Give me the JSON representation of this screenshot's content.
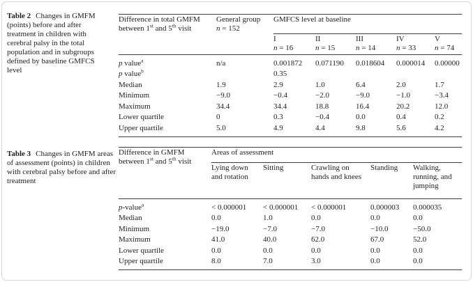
{
  "table2": {
    "caption_label": "Table 2",
    "caption_text": "Changes in GMFM (points) before and after treatment in children with cerebral palsy in the total population and in subgroups defined by baseline GMFCS level",
    "header": {
      "stub_line1": "Difference in total GMFM",
      "stub_line2": [
        [
          "t",
          "between 1"
        ],
        [
          "s",
          "st"
        ],
        [
          "t",
          " and 5"
        ],
        [
          "s",
          "th"
        ],
        [
          "t",
          " visit"
        ]
      ],
      "general_line1": "General group",
      "general_line2": [
        [
          "i",
          "n"
        ],
        [
          "t",
          " = 152"
        ]
      ],
      "spanner": "GMFCS level at baseline",
      "levels": [
        {
          "numeral": "I",
          "n": [
            [
              "i",
              "n"
            ],
            [
              "t",
              " = 16"
            ]
          ]
        },
        {
          "numeral": "II",
          "n": [
            [
              "i",
              "n"
            ],
            [
              "t",
              " = 15"
            ]
          ]
        },
        {
          "numeral": "III",
          "n": [
            [
              "i",
              "n"
            ],
            [
              "t",
              " = 14"
            ]
          ]
        },
        {
          "numeral": "IV",
          "n": [
            [
              "i",
              "n"
            ],
            [
              "t",
              " = 33"
            ]
          ]
        },
        {
          "numeral": "V",
          "n": [
            [
              "i",
              "n"
            ],
            [
              "t",
              " = 74"
            ]
          ]
        }
      ]
    },
    "rows": [
      {
        "label": [
          [
            "i",
            "p"
          ],
          [
            "t",
            " value"
          ],
          [
            "s",
            "a"
          ]
        ],
        "cells": [
          "n/a",
          "0.001872",
          "0.071190",
          "0.018604",
          "0.000014",
          "0.00000"
        ]
      },
      {
        "label": [
          [
            "i",
            "p"
          ],
          [
            "t",
            " value"
          ],
          [
            "s",
            "b"
          ]
        ],
        "cells": [
          "",
          "0.35",
          "",
          "",
          "",
          ""
        ]
      },
      {
        "label": [
          [
            "t",
            "Median"
          ]
        ],
        "cells": [
          "1.9",
          "2.9",
          "1.0",
          "6.4",
          "2.0",
          "1.7"
        ]
      },
      {
        "label": [
          [
            "t",
            "Minimum"
          ]
        ],
        "cells": [
          "−9.0",
          "−0.4",
          "−2.0",
          "−9.0",
          "−1.0",
          "−3.4"
        ]
      },
      {
        "label": [
          [
            "t",
            "Maximum"
          ]
        ],
        "cells": [
          "34.4",
          "34.4",
          "18.8",
          "16.4",
          "20.2",
          "12.0"
        ]
      },
      {
        "label": [
          [
            "t",
            "Lower quartile"
          ]
        ],
        "cells": [
          "0",
          "0.3",
          "−0.4",
          "0.0",
          "0.4",
          "0.2"
        ]
      },
      {
        "label": [
          [
            "t",
            "Upper quartile"
          ]
        ],
        "cells": [
          "5.0",
          "4.9",
          "4.4",
          "9.8",
          "5.6",
          "4.2"
        ]
      }
    ]
  },
  "table3": {
    "caption_label": "Table 3",
    "caption_text": "Changes in GMFM areas of assessment (points) in children with cerebral palsy before and after treatment",
    "header": {
      "stub_line1": "Difference in GMFM",
      "stub_line2": [
        [
          "t",
          "between 1"
        ],
        [
          "s",
          "st"
        ],
        [
          "t",
          " and 5"
        ],
        [
          "s",
          "th"
        ],
        [
          "t",
          " visit"
        ]
      ],
      "spanner": "Areas of assessment",
      "areas": [
        "Lying down and rotation",
        "Sitting",
        "Crawling on hands and knees",
        "Standing",
        "Walking, running, and jumping"
      ]
    },
    "rows": [
      {
        "label": [
          [
            "i",
            "p"
          ],
          [
            "t",
            "-value"
          ],
          [
            "s",
            "a"
          ]
        ],
        "cells": [
          "< 0.000001",
          "< 0.000001",
          "< 0.000001",
          "0.000003",
          "0.000035"
        ]
      },
      {
        "label": [
          [
            "t",
            "Median"
          ]
        ],
        "cells": [
          "0.0",
          "1.0",
          "0.0",
          "0.0",
          "0.0"
        ]
      },
      {
        "label": [
          [
            "t",
            "Minimum"
          ]
        ],
        "cells": [
          "−19.0",
          "−7.0",
          "−7.0",
          "−10.0",
          "−50.0"
        ]
      },
      {
        "label": [
          [
            "t",
            "Maximum"
          ]
        ],
        "cells": [
          "41.0",
          "40.0",
          "62.0",
          "67.0",
          "52.0"
        ]
      },
      {
        "label": [
          [
            "t",
            "Lower quartile"
          ]
        ],
        "cells": [
          "0.0",
          "0.0",
          "0.0",
          "0.0",
          "0.0"
        ]
      },
      {
        "label": [
          [
            "t",
            "Upper quartile"
          ]
        ],
        "cells": [
          "8.0",
          "7.0",
          "3.0",
          "0.0",
          "0.0"
        ]
      }
    ]
  }
}
